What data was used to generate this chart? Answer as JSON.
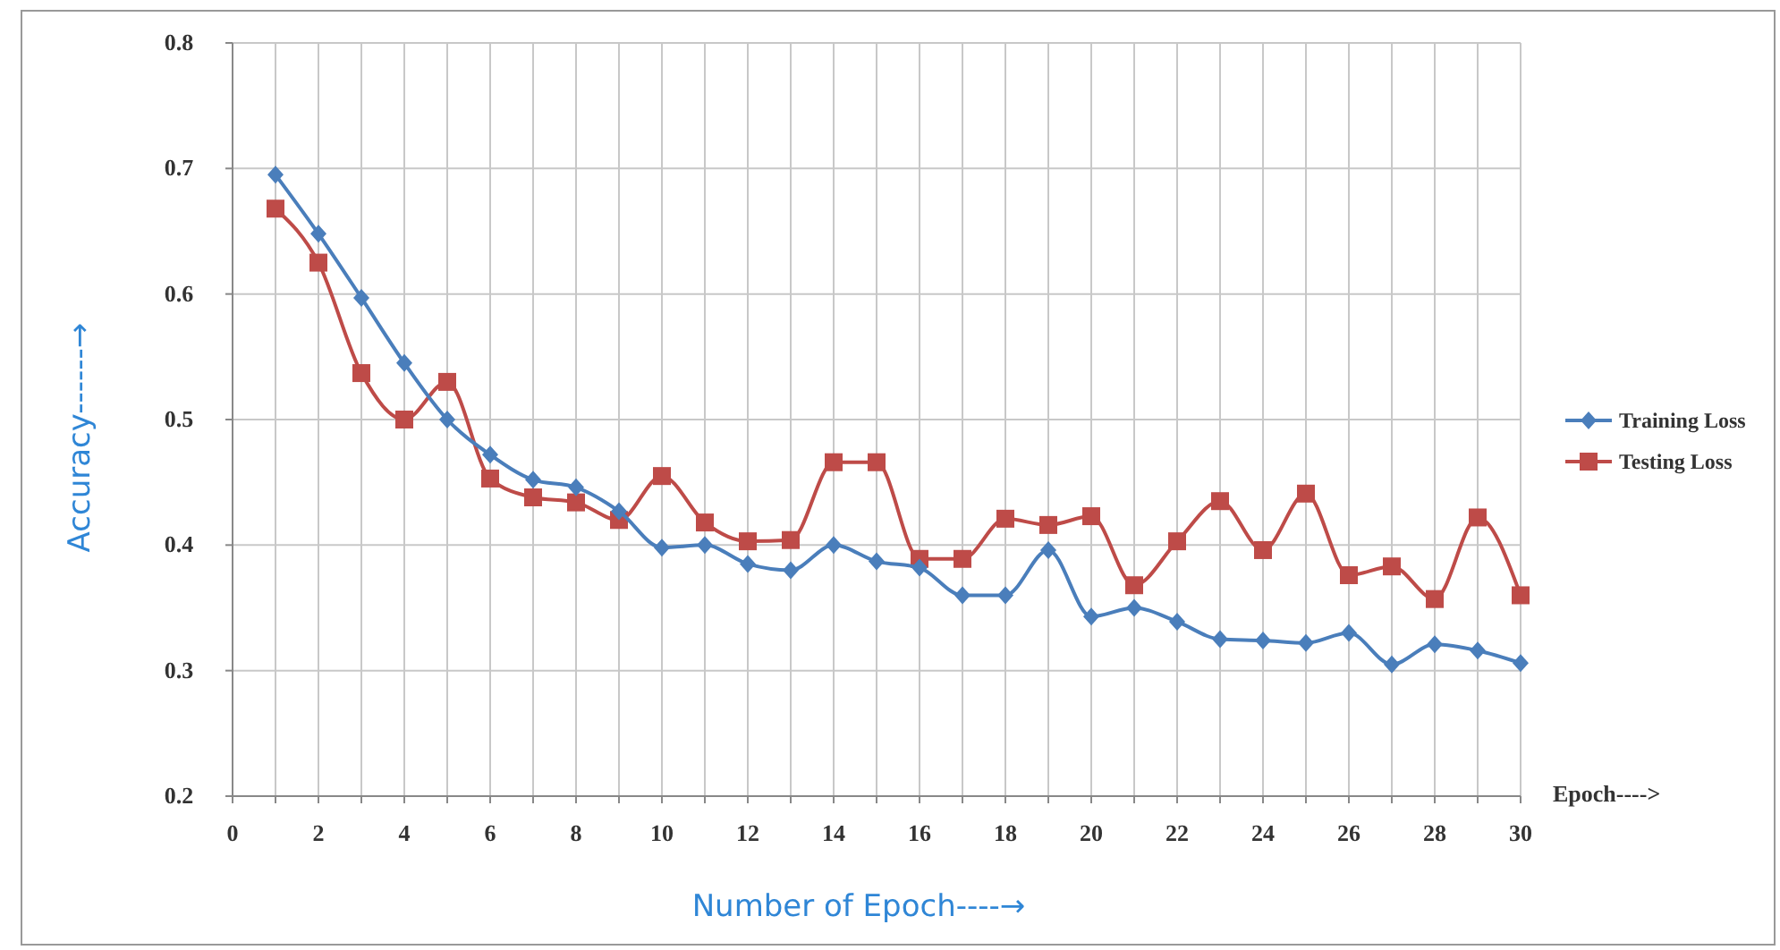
{
  "chart_data": {
    "type": "line",
    "xlabel": "Number of Epoch----→",
    "ylabel": "Accuracy------→",
    "annotations": [
      "Epoch---->"
    ],
    "x": [
      1,
      2,
      3,
      4,
      5,
      6,
      7,
      8,
      9,
      10,
      11,
      12,
      13,
      14,
      15,
      16,
      17,
      18,
      19,
      20,
      21,
      22,
      23,
      24,
      25,
      26,
      27,
      28,
      29,
      30
    ],
    "series": [
      {
        "name": "Training Loss",
        "color": "#4a7ebb",
        "marker": "diamond",
        "values": [
          0.695,
          0.648,
          0.597,
          0.545,
          0.5,
          0.472,
          0.452,
          0.446,
          0.427,
          0.398,
          0.4,
          0.385,
          0.38,
          0.4,
          0.387,
          0.382,
          0.36,
          0.36,
          0.396,
          0.343,
          0.35,
          0.339,
          0.325,
          0.324,
          0.322,
          0.33,
          0.305,
          0.321,
          0.316,
          0.306
        ]
      },
      {
        "name": "Testing Loss",
        "color": "#be4b48",
        "marker": "square",
        "values": [
          0.668,
          0.625,
          0.537,
          0.5,
          0.53,
          0.453,
          0.438,
          0.434,
          0.42,
          0.455,
          0.418,
          0.403,
          0.404,
          0.466,
          0.466,
          0.389,
          0.389,
          0.421,
          0.416,
          0.423,
          0.368,
          0.403,
          0.435,
          0.396,
          0.441,
          0.376,
          0.383,
          0.357,
          0.422,
          0.36
        ]
      }
    ],
    "xlim": [
      0,
      30
    ],
    "xticks": [
      0,
      {
        "value": 1,
        "label": null
      },
      2,
      {
        "value": 3,
        "label": null
      },
      4,
      {
        "value": 5,
        "label": null
      },
      6,
      {
        "value": 7,
        "label": null
      },
      8,
      {
        "value": 9,
        "label": null
      },
      10,
      {
        "value": 11,
        "label": null
      },
      12,
      {
        "value": 13,
        "label": null
      },
      14,
      {
        "value": 15,
        "label": null
      },
      16,
      {
        "value": 17,
        "label": null
      },
      18,
      {
        "value": 19,
        "label": null
      },
      20,
      {
        "value": 21,
        "label": null
      },
      22,
      {
        "value": 23,
        "label": null
      },
      24,
      {
        "value": 25,
        "label": null
      },
      26,
      {
        "value": 27,
        "label": null
      },
      28,
      {
        "value": 29,
        "label": null
      },
      30
    ],
    "ylim": [
      0.2,
      0.8
    ],
    "yticks": [
      {
        "value": 0.2,
        "label": "0.2"
      },
      {
        "value": 0.3,
        "label": "0.3"
      },
      {
        "value": 0.4,
        "label": "0.4"
      },
      {
        "value": 0.5,
        "label": "0.5"
      },
      {
        "value": 0.6,
        "label": "0.6"
      },
      {
        "value": 0.7,
        "label": "0.7"
      },
      {
        "value": 0.8,
        "label": "0.8"
      }
    ],
    "grid": true,
    "legend": "right",
    "line_style": "solid"
  }
}
